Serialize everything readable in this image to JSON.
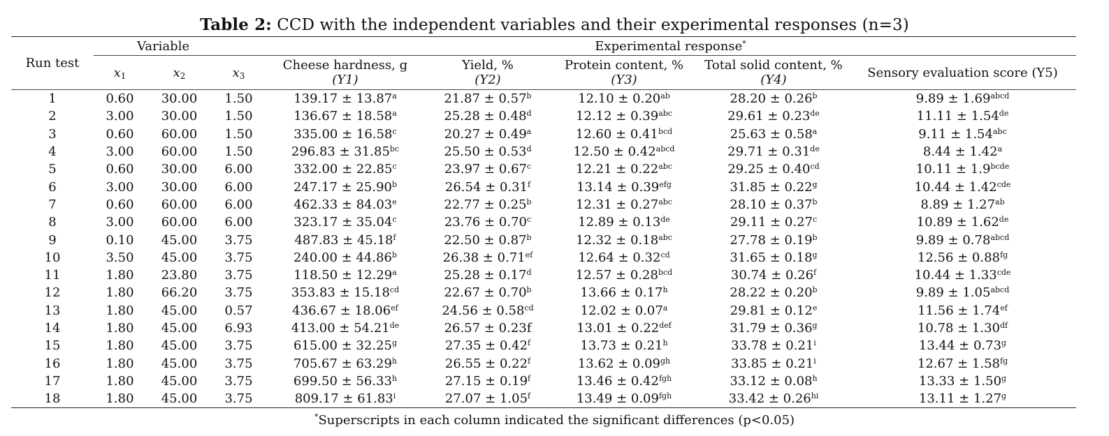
{
  "title": {
    "bold": "Table 2:",
    "text": " CCD with the independent variables and their experimental responses (n=3)"
  },
  "header": {
    "run_test": "Run test",
    "variable": "Variable",
    "experimental_response": "Experimental response",
    "experimental_response_mark": "*",
    "x1": "x",
    "x1_sub": "1",
    "x2": "x",
    "x2_sub": "2",
    "x3": "x",
    "x3_sub": "3",
    "hardness": "Cheese hardness, g",
    "hardness_sym": "(Y1)",
    "yield": "Yield, %",
    "yield_sym": "(Y2)",
    "protein": "Protein content, %",
    "protein_sym": "(Y3)",
    "solid": "Total solid content, %",
    "solid_sym": "(Y4)",
    "sensory": "Sensory evaluation score (Y5)"
  },
  "rows": [
    [
      "1",
      "0.60",
      "30.00",
      "1.50",
      "139.17 ± 13.87",
      "a",
      "21.87 ± 0.57",
      "b",
      "12.10 ± 0.20",
      "ab",
      "28.20 ± 0.26",
      "b",
      "9.89 ± 1.69",
      "abcd"
    ],
    [
      "2",
      "3.00",
      "30.00",
      "1.50",
      "136.67 ± 18.58",
      "a",
      "25.28 ± 0.48",
      "d",
      "12.12 ± 0.39",
      "abc",
      "29.61 ± 0.23",
      "de",
      "11.11 ± 1.54",
      "de"
    ],
    [
      "3",
      "0.60",
      "60.00",
      "1.50",
      "335.00 ± 16.58",
      "c",
      "20.27 ± 0.49",
      "a",
      "12.60 ± 0.41",
      "bcd",
      "25.63 ± 0.58",
      "a",
      "9.11 ± 1.54",
      "abc"
    ],
    [
      "4",
      "3.00",
      "60.00",
      "1.50",
      "296.83 ± 31.85",
      "bc",
      "25.50 ± 0.53",
      "d",
      "12.50 ± 0.42",
      "abcd",
      "29.71 ± 0.31",
      "de",
      "8.44 ± 1.42",
      "a"
    ],
    [
      "5",
      "0.60",
      "30.00",
      "6.00",
      "332.00 ± 22.85",
      "c",
      "23.97 ± 0.67",
      "c",
      "12.21 ± 0.22",
      "abc",
      "29.25 ± 0.40",
      "cd",
      "10.11 ± 1.9",
      "bcde"
    ],
    [
      "6",
      "3.00",
      "30.00",
      "6.00",
      "247.17 ± 25.90",
      "b",
      "26.54 ± 0.31",
      "f",
      "13.14 ± 0.39",
      "efg",
      "31.85 ± 0.22",
      "g",
      "10.44 ± 1.42",
      "cde"
    ],
    [
      "7",
      "0.60",
      "60.00",
      "6.00",
      "462.33 ± 84.03",
      "e",
      "22.77 ± 0.25",
      "b",
      "12.31 ± 0.27",
      "abc",
      "28.10 ± 0.37",
      "b",
      "8.89 ± 1.27",
      "ab"
    ],
    [
      "8",
      "3.00",
      "60.00",
      "6.00",
      "323.17 ± 35.04",
      "c",
      "23.76 ± 0.70",
      "c",
      "12.89 ± 0.13",
      "de",
      "29.11 ± 0.27",
      "c",
      "10.89 ± 1.62",
      "de"
    ],
    [
      "9",
      "0.10",
      "45.00",
      "3.75",
      "487.83 ± 45.18",
      "f",
      "22.50 ± 0.87",
      "b",
      "12.32 ± 0.18",
      "abc",
      "27.78 ± 0.19",
      "b",
      "9.89 ± 0.78",
      "abcd"
    ],
    [
      "10",
      "3.50",
      "45.00",
      "3.75",
      "240.00 ± 44.86",
      "b",
      "26.38 ± 0.71",
      "ef",
      "12.64 ± 0.32",
      "cd",
      "31.65 ± 0.18",
      "g",
      "12.56 ± 0.88",
      "fg"
    ],
    [
      "11",
      "1.80",
      "23.80",
      "3.75",
      "118.50 ± 12.29",
      "a",
      "25.28 ± 0.17",
      "d",
      "12.57 ± 0.28",
      "bcd",
      "30.74 ± 0.26",
      "f",
      "10.44 ± 1.33",
      "cde"
    ],
    [
      "12",
      "1.80",
      "66.20",
      "3.75",
      "353.83 ± 15.18",
      "cd",
      "22.67 ± 0.70",
      "b",
      "13.66 ± 0.17",
      "h",
      "28.22 ± 0.20",
      "b",
      "9.89 ± 1.05",
      "abcd"
    ],
    [
      "13",
      "1.80",
      "45.00",
      "0.57",
      "436.67 ± 18.06",
      "ef",
      "24.56 ± 0.58",
      "cd",
      "12.02 ± 0.07",
      "a",
      "29.81 ± 0.12",
      "e",
      "11.56 ± 1.74",
      "ef"
    ],
    [
      "14",
      "1.80",
      "45.00",
      "6.93",
      "413.00 ± 54.21",
      "de",
      "26.57 ± 0.23f",
      "",
      "13.01 ± 0.22",
      "def",
      "31.79 ± 0.36",
      "g",
      "10.78 ± 1.30",
      "df"
    ],
    [
      "15",
      "1.80",
      "45.00",
      "3.75",
      "615.00 ± 32.25",
      "g",
      "27.35 ± 0.42",
      "f",
      "13.73 ± 0.21",
      "h",
      "33.78 ± 0.21",
      "i",
      "13.44 ± 0.73",
      "g"
    ],
    [
      "16",
      "1.80",
      "45.00",
      "3.75",
      "705.67 ± 63.29",
      "h",
      "26.55 ± 0.22",
      "f",
      "13.62 ± 0.09",
      "gh",
      "33.85 ± 0.21",
      "i",
      "12.67 ± 1.58",
      "fg"
    ],
    [
      "17",
      "1.80",
      "45.00",
      "3.75",
      "699.50 ± 56.33",
      "h",
      "27.15 ± 0.19",
      "f",
      "13.46 ± 0.42",
      "fgh",
      "33.12 ± 0.08",
      "h",
      "13.33 ± 1.50",
      "g"
    ],
    [
      "18",
      "1.80",
      "45.00",
      "3.75",
      "809.17 ± 61.83",
      "i",
      "27.07 ± 1.05",
      "f",
      "13.49 ± 0.09",
      "fgh",
      "33.42 ± 0.26",
      "hi",
      "13.11 ± 1.27",
      "g"
    ]
  ],
  "footnote": {
    "mark": "*",
    "text": "Superscripts in each column indicated the significant differences (p<0.05)"
  }
}
